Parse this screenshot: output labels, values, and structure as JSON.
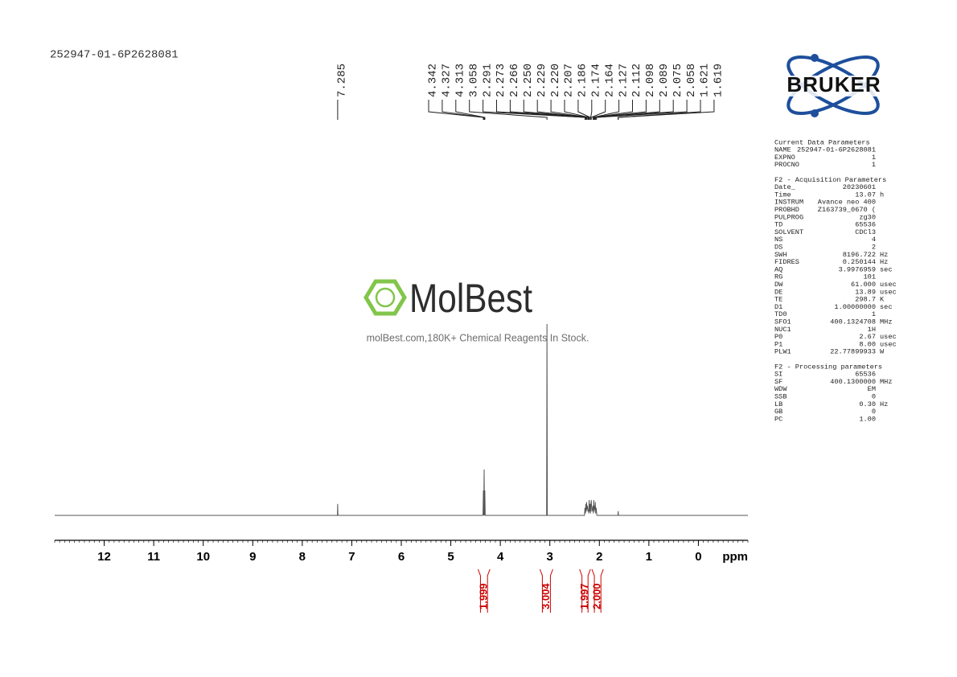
{
  "chart_data": {
    "type": "nmr",
    "title": "252947-01-6P2628081",
    "x_label": "ppm",
    "xlim": [
      13,
      -1
    ],
    "xticks": [
      12,
      11,
      10,
      9,
      8,
      7,
      6,
      5,
      4,
      3,
      2,
      1,
      0
    ],
    "minor_tick_step": 0.1,
    "ylim": [
      0,
      100
    ],
    "color": "#555555",
    "x": [
      13,
      7.29,
      7.285,
      7.28,
      4.35,
      4.342,
      4.335,
      4.327,
      4.32,
      4.313,
      4.305,
      3.065,
      3.058,
      3.051,
      2.3,
      2.291,
      2.282,
      2.273,
      2.266,
      2.258,
      2.25,
      2.24,
      2.229,
      2.22,
      2.213,
      2.207,
      2.196,
      2.186,
      2.18,
      2.174,
      2.164,
      2.15,
      2.127,
      2.12,
      2.112,
      2.105,
      2.098,
      2.089,
      2.082,
      2.075,
      2.066,
      2.058,
      2.05,
      1.625,
      1.621,
      1.619,
      1.615,
      -1
    ],
    "values": [
      0,
      0,
      6,
      0,
      0,
      13,
      0,
      24,
      0,
      13,
      0,
      0,
      100,
      0,
      0,
      4,
      1,
      6,
      2,
      7,
      3,
      5,
      2,
      3,
      1,
      8,
      2,
      6,
      1,
      4,
      8,
      2,
      5,
      1,
      8,
      2,
      5,
      3,
      7,
      1,
      4,
      2,
      0,
      0,
      2,
      2,
      0,
      0
    ],
    "peaks": [
      {
        "value": 7.285,
        "label": "7.285"
      },
      {
        "value": 4.342,
        "label": "4.342"
      },
      {
        "value": 4.327,
        "label": "4.327"
      },
      {
        "value": 4.313,
        "label": "4.313"
      },
      {
        "value": 3.058,
        "label": "3.058"
      },
      {
        "value": 2.291,
        "label": "2.291"
      },
      {
        "value": 2.273,
        "label": "2.273"
      },
      {
        "value": 2.266,
        "label": "2.266"
      },
      {
        "value": 2.25,
        "label": "2.250"
      },
      {
        "value": 2.229,
        "label": "2.229"
      },
      {
        "value": 2.22,
        "label": "2.220"
      },
      {
        "value": 2.207,
        "label": "2.207"
      },
      {
        "value": 2.186,
        "label": "2.186"
      },
      {
        "value": 2.174,
        "label": "2.174"
      },
      {
        "value": 2.164,
        "label": "2.164"
      },
      {
        "value": 2.127,
        "label": "2.127"
      },
      {
        "value": 2.112,
        "label": "2.112"
      },
      {
        "value": 2.098,
        "label": "2.098"
      },
      {
        "value": 2.089,
        "label": "2.089"
      },
      {
        "value": 2.075,
        "label": "2.075"
      },
      {
        "value": 2.058,
        "label": "2.058"
      },
      {
        "value": 1.621,
        "label": "1.621"
      },
      {
        "value": 1.619,
        "label": "1.619"
      }
    ],
    "integrals": [
      {
        "from": 4.45,
        "to": 4.21,
        "value": 1.999,
        "label": "1.999"
      },
      {
        "from": 3.2,
        "to": 2.94,
        "value": 3.004,
        "label": "3.004"
      },
      {
        "from": 2.4,
        "to": 2.18,
        "value": 1.997,
        "label": "1.997"
      },
      {
        "from": 2.15,
        "to": 1.92,
        "value": 2.0,
        "label": "2.000"
      }
    ],
    "integral_color": "#cc0000"
  },
  "logo": {
    "text": "BRUKER"
  },
  "watermark": {
    "brand": "MolBest",
    "tagline": "molBest.com,180K+ Chemical Reagents In Stock."
  },
  "parameters": [
    {
      "title": "Current Data Parameters",
      "rows": [
        [
          "NAME",
          "252947-01-6P2628081",
          ""
        ],
        [
          "EXPNO",
          "1",
          ""
        ],
        [
          "PROCNO",
          "1",
          ""
        ]
      ]
    },
    {
      "title": "F2 - Acquisition Parameters",
      "rows": [
        [
          "Date_",
          "20230601",
          ""
        ],
        [
          "Time",
          "13.07",
          "h"
        ],
        [
          "INSTRUM",
          "Avance neo 400",
          ""
        ],
        [
          "PROBHD",
          "Z163739_0670 (",
          ""
        ],
        [
          "PULPROG",
          "zg30",
          ""
        ],
        [
          "TD",
          "65536",
          ""
        ],
        [
          "SOLVENT",
          "CDCl3",
          ""
        ],
        [
          "NS",
          "4",
          ""
        ],
        [
          "DS",
          "2",
          ""
        ],
        [
          "SWH",
          "8196.722",
          "Hz"
        ],
        [
          "FIDRES",
          "0.250144",
          "Hz"
        ],
        [
          "AQ",
          "3.9976959",
          "sec"
        ],
        [
          "RG",
          "101",
          ""
        ],
        [
          "DW",
          "61.000",
          "usec"
        ],
        [
          "DE",
          "13.89",
          "usec"
        ],
        [
          "TE",
          "298.7",
          "K"
        ],
        [
          "D1",
          "1.00000000",
          "sec"
        ],
        [
          "TD0",
          "1",
          ""
        ],
        [
          "SFO1",
          "400.1324708",
          "MHz"
        ],
        [
          "NUC1",
          "1H",
          ""
        ],
        [
          "P0",
          "2.67",
          "usec"
        ],
        [
          "P1",
          "8.00",
          "usec"
        ],
        [
          "PLW1",
          "22.77899933",
          "W"
        ]
      ]
    },
    {
      "title": "F2 - Processing parameters",
      "rows": [
        [
          "SI",
          "65536",
          ""
        ],
        [
          "SF",
          "400.1300000",
          "MHz"
        ],
        [
          "WDW",
          "EM",
          ""
        ],
        [
          "SSB",
          "0",
          ""
        ],
        [
          "LB",
          "0.30",
          "Hz"
        ],
        [
          "GB",
          "0",
          ""
        ],
        [
          "PC",
          "1.00",
          ""
        ]
      ]
    }
  ]
}
